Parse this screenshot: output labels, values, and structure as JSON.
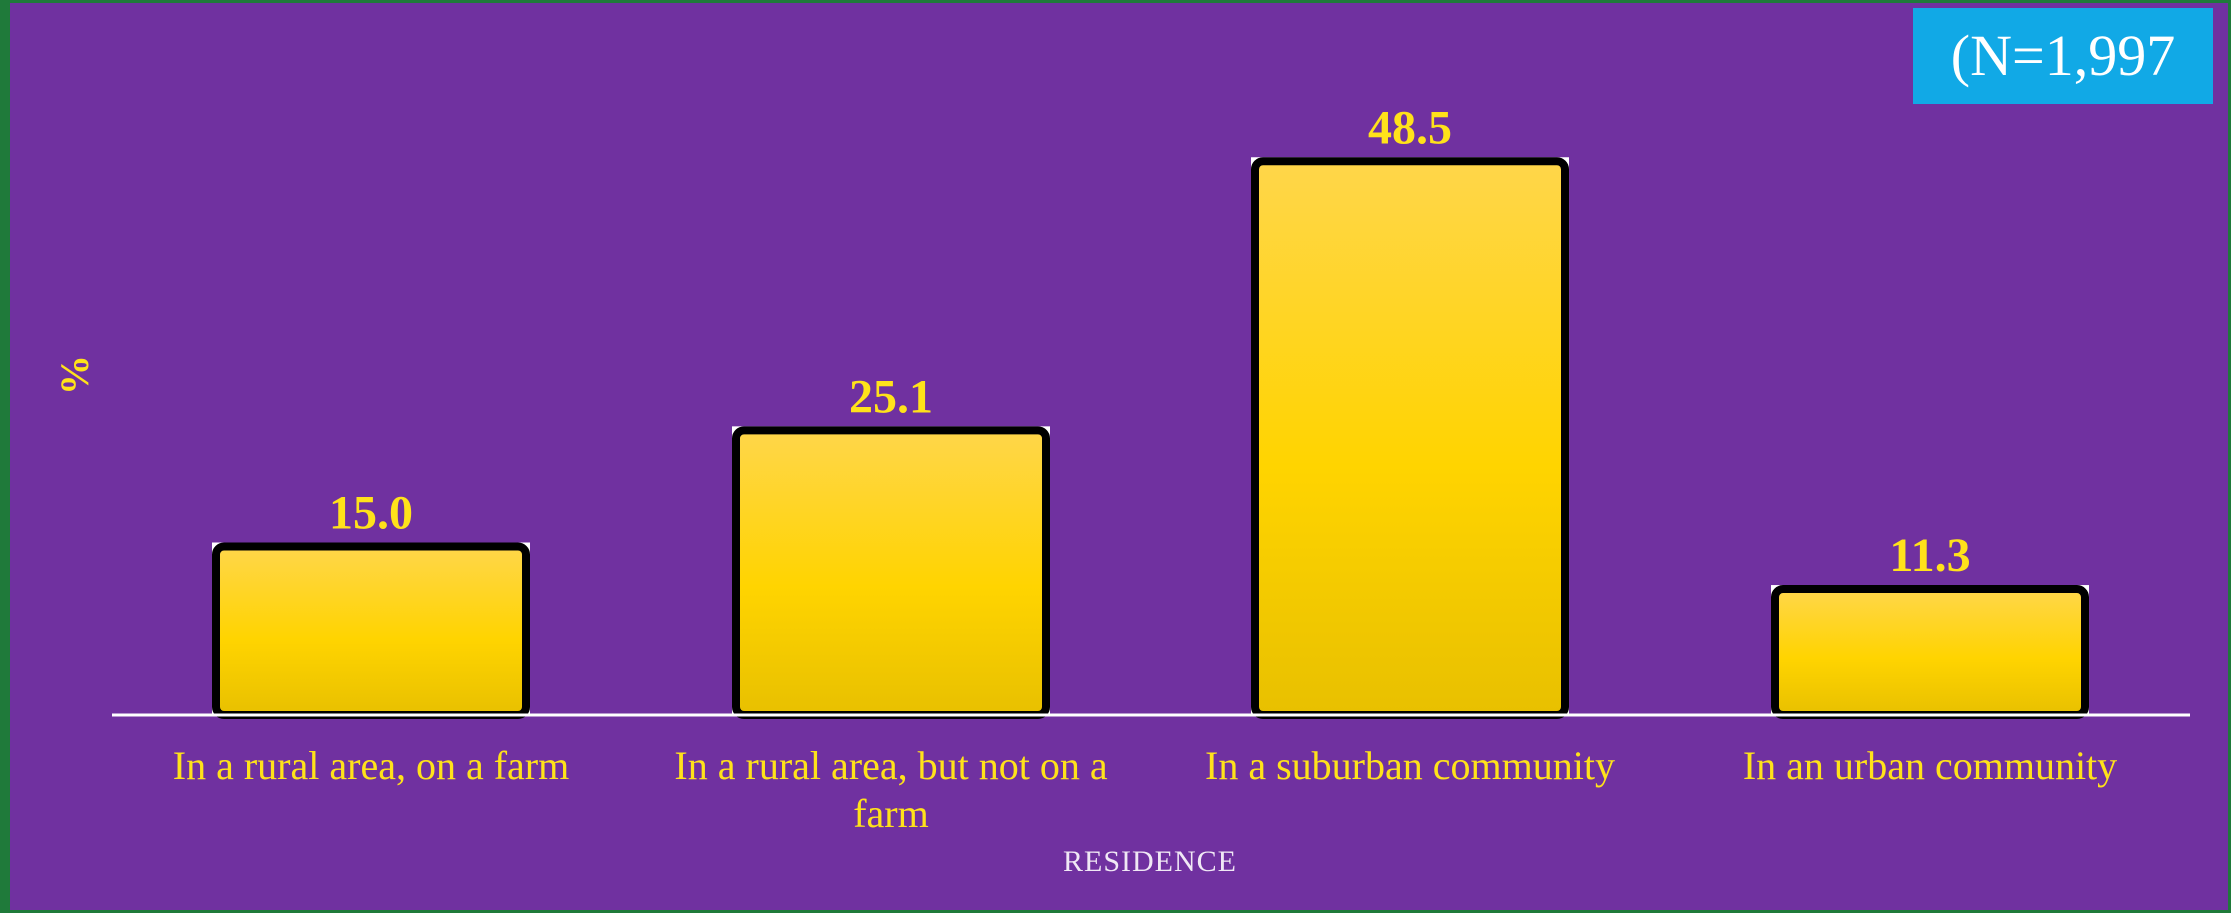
{
  "chart_data": {
    "type": "bar",
    "title": "",
    "xlabel": "RESIDENCE",
    "ylabel": "%",
    "annotation": "(N=1,997",
    "categories": [
      "In a rural area, on a farm",
      "In a rural area, but not on a farm",
      "In a suburban community",
      "In an urban community"
    ],
    "values": [
      15.0,
      25.1,
      48.5,
      11.3
    ],
    "value_labels": [
      "15.0",
      "25.1",
      "48.5",
      "11.3"
    ],
    "ylim": [
      0,
      60
    ],
    "grid": false,
    "legend": "none",
    "colors": {
      "background": "#7031a0",
      "bar_top": "#ffd64a",
      "bar_mid": "#ffd400",
      "bar_bottom": "#e8c000",
      "bar_outline": "#000000",
      "text": "#ffe21a",
      "badge": "#11a9e6"
    }
  }
}
